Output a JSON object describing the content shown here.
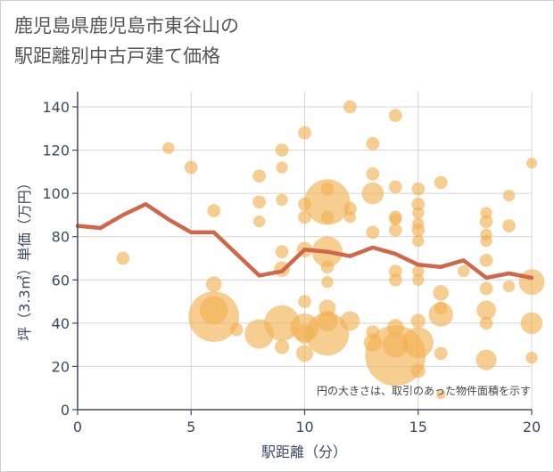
{
  "chart_data": {
    "type": "scatter",
    "title_lines": [
      "鹿児島県鹿児島市東谷山の",
      "駅距離別中古戸建て価格"
    ],
    "xlabel": "駅距離（分）",
    "ylabel": "坪（3.3㎡）単価（万円）",
    "note": "円の大きさは、取引のあった物件面積を示す",
    "xlim": [
      0,
      20
    ],
    "ylim": [
      0,
      147
    ],
    "xticks": [
      0,
      5,
      10,
      15,
      20
    ],
    "yticks": [
      0,
      20,
      40,
      60,
      80,
      100,
      120,
      140
    ],
    "grid": true,
    "colors": {
      "bubble": "#f2b04f",
      "line": "#d0674a",
      "grid": "#d4d4d4",
      "axis": "#3b4a63"
    },
    "line_series": {
      "x": [
        0,
        1,
        2,
        3,
        4,
        5,
        6,
        7,
        8,
        9,
        10,
        11,
        12,
        13,
        14,
        15,
        16,
        17,
        18,
        19,
        20
      ],
      "y": [
        85,
        84,
        90,
        95,
        88,
        82,
        82,
        72,
        62,
        64,
        74,
        73,
        71,
        75,
        72,
        67,
        66,
        69,
        61,
        63,
        61
      ]
    },
    "bubbles": [
      {
        "x": 2,
        "y": 70,
        "r": 1.0
      },
      {
        "x": 4,
        "y": 121,
        "r": 0.9
      },
      {
        "x": 5,
        "y": 112,
        "r": 1.0
      },
      {
        "x": 6,
        "y": 92,
        "r": 1.0
      },
      {
        "x": 6,
        "y": 58,
        "r": 1.2
      },
      {
        "x": 6,
        "y": 46,
        "r": 2.2
      },
      {
        "x": 6,
        "y": 43,
        "r": 4.0
      },
      {
        "x": 7,
        "y": 37,
        "r": 1.0
      },
      {
        "x": 8,
        "y": 108,
        "r": 1.0
      },
      {
        "x": 8,
        "y": 96,
        "r": 1.0
      },
      {
        "x": 8,
        "y": 87,
        "r": 0.9
      },
      {
        "x": 8,
        "y": 35,
        "r": 2.3
      },
      {
        "x": 9,
        "y": 120,
        "r": 1.0
      },
      {
        "x": 9,
        "y": 112,
        "r": 0.9
      },
      {
        "x": 9,
        "y": 97,
        "r": 0.9
      },
      {
        "x": 9,
        "y": 73,
        "r": 1.0
      },
      {
        "x": 9,
        "y": 65,
        "r": 1.2
      },
      {
        "x": 9,
        "y": 40,
        "r": 2.8
      },
      {
        "x": 9,
        "y": 29,
        "r": 1.1
      },
      {
        "x": 10,
        "y": 128,
        "r": 1.0
      },
      {
        "x": 10,
        "y": 95,
        "r": 1.0
      },
      {
        "x": 10,
        "y": 89,
        "r": 1.0
      },
      {
        "x": 10,
        "y": 74,
        "r": 1.2
      },
      {
        "x": 10,
        "y": 50,
        "r": 1.0
      },
      {
        "x": 10,
        "y": 38,
        "r": 2.2
      },
      {
        "x": 10,
        "y": 35,
        "r": 1.5
      },
      {
        "x": 10,
        "y": 26,
        "r": 1.3
      },
      {
        "x": 11,
        "y": 102,
        "r": 1.0
      },
      {
        "x": 11,
        "y": 96,
        "r": 3.6
      },
      {
        "x": 11,
        "y": 89,
        "r": 1.0
      },
      {
        "x": 11,
        "y": 73,
        "r": 2.4
      },
      {
        "x": 11,
        "y": 66,
        "r": 1.0
      },
      {
        "x": 11,
        "y": 59,
        "r": 0.9
      },
      {
        "x": 11,
        "y": 47,
        "r": 1.3
      },
      {
        "x": 11,
        "y": 41,
        "r": 1.6
      },
      {
        "x": 11,
        "y": 35,
        "r": 3.4
      },
      {
        "x": 12,
        "y": 140,
        "r": 1.0
      },
      {
        "x": 12,
        "y": 93,
        "r": 1.0
      },
      {
        "x": 12,
        "y": 89,
        "r": 0.9
      },
      {
        "x": 12,
        "y": 41,
        "r": 1.5
      },
      {
        "x": 13,
        "y": 123,
        "r": 1.0
      },
      {
        "x": 13,
        "y": 109,
        "r": 1.0
      },
      {
        "x": 13,
        "y": 100,
        "r": 1.7
      },
      {
        "x": 13,
        "y": 82,
        "r": 1.0
      },
      {
        "x": 13,
        "y": 36,
        "r": 1.0
      },
      {
        "x": 13,
        "y": 31,
        "r": 1.4
      },
      {
        "x": 14,
        "y": 136,
        "r": 1.0
      },
      {
        "x": 14,
        "y": 103,
        "r": 1.0
      },
      {
        "x": 14,
        "y": 89,
        "r": 1.0
      },
      {
        "x": 14,
        "y": 88,
        "r": 0.9
      },
      {
        "x": 14,
        "y": 83,
        "r": 1.0
      },
      {
        "x": 14,
        "y": 64,
        "r": 1.0
      },
      {
        "x": 14,
        "y": 60,
        "r": 1.0
      },
      {
        "x": 14,
        "y": 38,
        "r": 1.3
      },
      {
        "x": 14,
        "y": 30,
        "r": 2.0
      },
      {
        "x": 14,
        "y": 25,
        "r": 4.8
      },
      {
        "x": 15,
        "y": 102,
        "r": 1.0
      },
      {
        "x": 15,
        "y": 95,
        "r": 1.0
      },
      {
        "x": 15,
        "y": 91,
        "r": 0.9
      },
      {
        "x": 15,
        "y": 86,
        "r": 0.9
      },
      {
        "x": 15,
        "y": 83,
        "r": 1.0
      },
      {
        "x": 15,
        "y": 78,
        "r": 0.9
      },
      {
        "x": 15,
        "y": 64,
        "r": 0.9
      },
      {
        "x": 15,
        "y": 60,
        "r": 0.9
      },
      {
        "x": 15,
        "y": 41,
        "r": 1.1
      },
      {
        "x": 15,
        "y": 31,
        "r": 2.4
      },
      {
        "x": 15,
        "y": 18,
        "r": 1.1
      },
      {
        "x": 16,
        "y": 105,
        "r": 1.0
      },
      {
        "x": 16,
        "y": 54,
        "r": 1.2
      },
      {
        "x": 16,
        "y": 47,
        "r": 1.0
      },
      {
        "x": 16,
        "y": 44,
        "r": 1.9
      },
      {
        "x": 16,
        "y": 26,
        "r": 1.0
      },
      {
        "x": 16,
        "y": 7,
        "r": 0.7
      },
      {
        "x": 17,
        "y": 64,
        "r": 0.9
      },
      {
        "x": 18,
        "y": 91,
        "r": 0.9
      },
      {
        "x": 18,
        "y": 87,
        "r": 1.0
      },
      {
        "x": 18,
        "y": 81,
        "r": 0.9
      },
      {
        "x": 18,
        "y": 78,
        "r": 0.9
      },
      {
        "x": 18,
        "y": 69,
        "r": 1.0
      },
      {
        "x": 18,
        "y": 56,
        "r": 1.0
      },
      {
        "x": 18,
        "y": 46,
        "r": 1.5
      },
      {
        "x": 18,
        "y": 40,
        "r": 1.0
      },
      {
        "x": 18,
        "y": 23,
        "r": 1.6
      },
      {
        "x": 19,
        "y": 99,
        "r": 0.9
      },
      {
        "x": 19,
        "y": 85,
        "r": 1.0
      },
      {
        "x": 19,
        "y": 57,
        "r": 0.9
      },
      {
        "x": 20,
        "y": 114,
        "r": 0.8
      },
      {
        "x": 20,
        "y": 59,
        "r": 2.0
      },
      {
        "x": 20,
        "y": 40,
        "r": 1.7
      },
      {
        "x": 20,
        "y": 24,
        "r": 0.9
      }
    ]
  }
}
